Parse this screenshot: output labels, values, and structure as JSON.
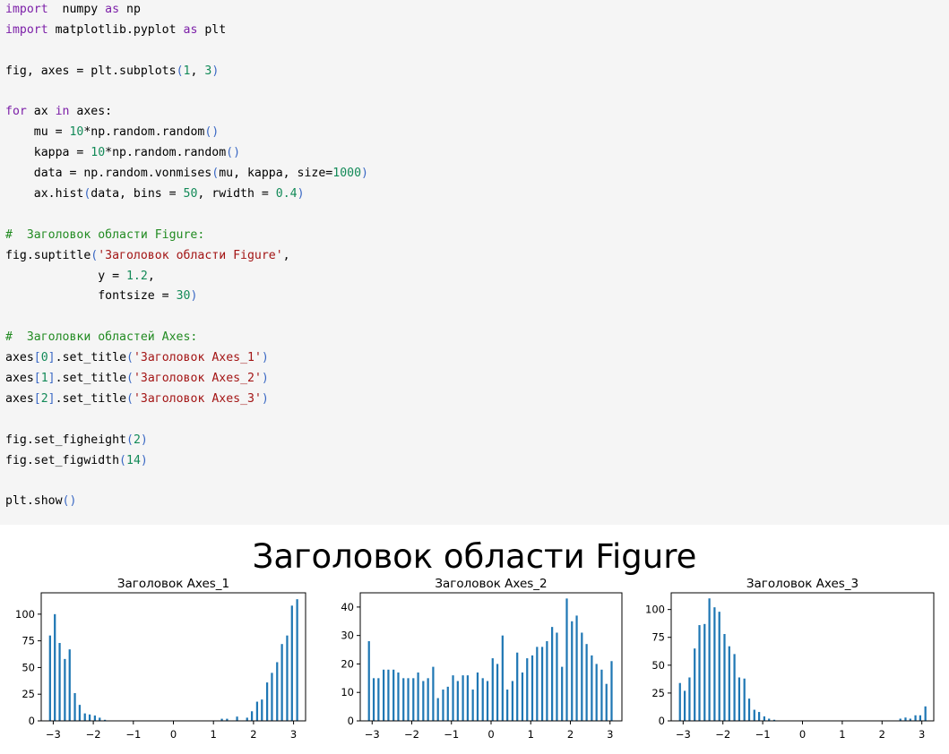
{
  "code_lines": [
    [
      [
        "kw",
        "import"
      ],
      [
        "",
        "  numpy "
      ],
      [
        "kw",
        "as"
      ],
      [
        "",
        " np"
      ]
    ],
    [
      [
        "kw",
        "import"
      ],
      [
        "",
        " matplotlib.pyplot "
      ],
      [
        "kw",
        "as"
      ],
      [
        "",
        " plt"
      ]
    ],
    [],
    [
      [
        "",
        "fig, axes = plt.subplots"
      ],
      [
        "par",
        "("
      ],
      [
        "num",
        "1"
      ],
      [
        "",
        ", "
      ],
      [
        "num",
        "3"
      ],
      [
        "par",
        ")"
      ]
    ],
    [],
    [
      [
        "kw",
        "for"
      ],
      [
        "",
        " ax "
      ],
      [
        "kw",
        "in"
      ],
      [
        "",
        " axes:"
      ]
    ],
    [
      [
        "",
        "    mu = "
      ],
      [
        "num",
        "10"
      ],
      [
        "",
        "*np.random.random"
      ],
      [
        "par",
        "()"
      ]
    ],
    [
      [
        "",
        "    kappa = "
      ],
      [
        "num",
        "10"
      ],
      [
        "",
        "*np.random.random"
      ],
      [
        "par",
        "()"
      ]
    ],
    [
      [
        "",
        "    data = np.random.vonmises"
      ],
      [
        "par",
        "("
      ],
      [
        "",
        "mu, kappa, size="
      ],
      [
        "num",
        "1000"
      ],
      [
        "par",
        ")"
      ]
    ],
    [
      [
        "",
        "    ax.hist"
      ],
      [
        "par",
        "("
      ],
      [
        "",
        "data, bins = "
      ],
      [
        "num",
        "50"
      ],
      [
        "",
        ", rwidth = "
      ],
      [
        "num",
        "0.4"
      ],
      [
        "par",
        ")"
      ]
    ],
    [],
    [
      [
        "cm",
        "#  Заголовок области Figure:"
      ]
    ],
    [
      [
        "",
        "fig.suptitle"
      ],
      [
        "par",
        "("
      ],
      [
        "str",
        "'Заголовок области Figure'"
      ],
      [
        "",
        ","
      ]
    ],
    [
      [
        "",
        "             y = "
      ],
      [
        "num",
        "1.2"
      ],
      [
        "",
        ","
      ]
    ],
    [
      [
        "",
        "             fontsize = "
      ],
      [
        "num",
        "30"
      ],
      [
        "par",
        ")"
      ]
    ],
    [],
    [
      [
        "cm",
        "#  Заголовки областей Axes:"
      ]
    ],
    [
      [
        "",
        "axes"
      ],
      [
        "par",
        "["
      ],
      [
        "num",
        "0"
      ],
      [
        "par",
        "]"
      ],
      [
        "",
        ".set_title"
      ],
      [
        "par",
        "("
      ],
      [
        "str",
        "'Заголовок Axes_1'"
      ],
      [
        "par",
        ")"
      ]
    ],
    [
      [
        "",
        "axes"
      ],
      [
        "par",
        "["
      ],
      [
        "num",
        "1"
      ],
      [
        "par",
        "]"
      ],
      [
        "",
        ".set_title"
      ],
      [
        "par",
        "("
      ],
      [
        "str",
        "'Заголовок Axes_2'"
      ],
      [
        "par",
        ")"
      ]
    ],
    [
      [
        "",
        "axes"
      ],
      [
        "par",
        "["
      ],
      [
        "num",
        "2"
      ],
      [
        "par",
        "]"
      ],
      [
        "",
        ".set_title"
      ],
      [
        "par",
        "("
      ],
      [
        "str",
        "'Заголовок Axes_3'"
      ],
      [
        "par",
        ")"
      ]
    ],
    [],
    [
      [
        "",
        "fig.set_figheight"
      ],
      [
        "par",
        "("
      ],
      [
        "num",
        "2"
      ],
      [
        "par",
        ")"
      ]
    ],
    [
      [
        "",
        "fig.set_figwidth"
      ],
      [
        "par",
        "("
      ],
      [
        "num",
        "14"
      ],
      [
        "par",
        ")"
      ]
    ],
    [],
    [
      [
        "",
        "plt.show"
      ],
      [
        "par",
        "()"
      ]
    ]
  ],
  "figure": {
    "suptitle": "Заголовок области Figure",
    "bar_color": "#1f77b4"
  },
  "chart_data": [
    {
      "type": "bar",
      "title": "Заголовок Axes_1",
      "xlim": [
        -3.3,
        3.3
      ],
      "ylim": [
        0,
        120
      ],
      "xticks": [
        -3,
        -2,
        -1,
        0,
        1,
        2,
        3
      ],
      "yticks": [
        0,
        25,
        50,
        75,
        100
      ],
      "x": [
        -3.08,
        -2.96,
        -2.84,
        -2.71,
        -2.59,
        -2.46,
        -2.34,
        -2.21,
        -2.09,
        -1.96,
        -1.84,
        -1.71,
        1.21,
        1.34,
        1.59,
        1.84,
        1.96,
        2.09,
        2.21,
        2.34,
        2.46,
        2.59,
        2.71,
        2.84,
        2.96,
        3.09
      ],
      "values": [
        80,
        100,
        73,
        58,
        67,
        26,
        15,
        7,
        6,
        5,
        3,
        1,
        2,
        2,
        4,
        3,
        9,
        18,
        20,
        36,
        45,
        55,
        72,
        80,
        108,
        114
      ]
    },
    {
      "type": "bar",
      "title": "Заголовок Axes_2",
      "xlim": [
        -3.3,
        3.3
      ],
      "ylim": [
        0,
        45
      ],
      "xticks": [
        -3,
        -2,
        -1,
        0,
        1,
        2,
        3
      ],
      "yticks": [
        0,
        10,
        20,
        30,
        40
      ],
      "x": [
        -3.08,
        -2.96,
        -2.84,
        -2.71,
        -2.59,
        -2.46,
        -2.34,
        -2.21,
        -2.09,
        -1.96,
        -1.84,
        -1.71,
        -1.59,
        -1.46,
        -1.34,
        -1.21,
        -1.09,
        -0.96,
        -0.84,
        -0.71,
        -0.59,
        -0.46,
        -0.34,
        -0.21,
        -0.09,
        0.04,
        0.16,
        0.29,
        0.41,
        0.54,
        0.66,
        0.79,
        0.91,
        1.04,
        1.16,
        1.29,
        1.41,
        1.54,
        1.66,
        1.79,
        1.91,
        2.04,
        2.16,
        2.29,
        2.41,
        2.54,
        2.66,
        2.79,
        2.91,
        3.04
      ],
      "values": [
        28,
        15,
        15,
        18,
        18,
        18,
        17,
        15,
        15,
        15,
        17,
        14,
        15,
        19,
        8,
        11,
        12,
        16,
        14,
        16,
        16,
        11,
        17,
        15,
        14,
        22,
        20,
        30,
        11,
        14,
        24,
        17,
        22,
        23,
        26,
        26,
        28,
        33,
        31,
        19,
        43,
        35,
        37,
        31,
        27,
        23,
        20,
        18,
        13,
        21
      ]
    },
    {
      "type": "bar",
      "title": "Заголовок Axes_3",
      "xlim": [
        -3.3,
        3.3
      ],
      "ylim": [
        0,
        115
      ],
      "xticks": [
        -3,
        -2,
        -1,
        0,
        1,
        2,
        3
      ],
      "yticks": [
        0,
        25,
        50,
        75,
        100
      ],
      "x": [
        -3.08,
        -2.96,
        -2.84,
        -2.71,
        -2.59,
        -2.46,
        -2.34,
        -2.21,
        -2.09,
        -1.96,
        -1.84,
        -1.71,
        -1.59,
        -1.46,
        -1.34,
        -1.21,
        -1.09,
        -0.96,
        -0.84,
        -0.71,
        2.46,
        2.59,
        2.71,
        2.84,
        2.96,
        3.09
      ],
      "values": [
        34,
        27,
        39,
        65,
        86,
        87,
        110,
        102,
        98,
        78,
        67,
        60,
        39,
        38,
        20,
        10,
        8,
        4,
        2,
        1,
        2,
        3,
        2,
        5,
        5,
        13
      ]
    }
  ]
}
